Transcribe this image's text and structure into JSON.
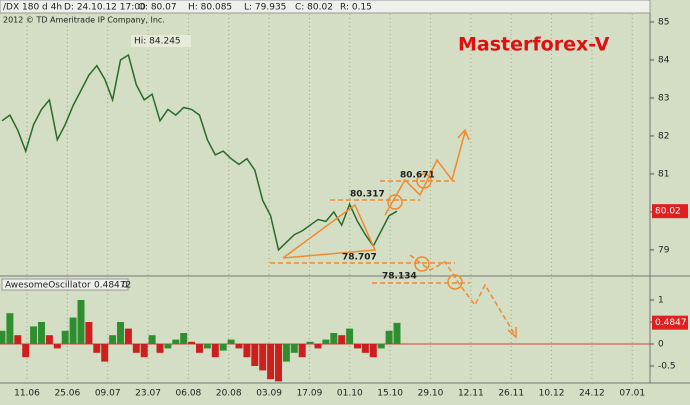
{
  "header": {
    "symbol": "/DX 180 d 4h",
    "date": "D: 24.10.12 17:00",
    "open": "O: 80.07",
    "high": "H: 80.085",
    "low": "L: 79.935",
    "close": "C: 80.02",
    "range": "R: 0.15"
  },
  "x_axis_labels": [
    "11.06",
    "25.06",
    "09.07",
    "23.07",
    "06.08",
    "20.08",
    "03.09",
    "17.09",
    "01.10",
    "15.10",
    "29.10",
    "12.11",
    "26.11",
    "10.12",
    "24.12",
    "07.01"
  ],
  "chart_data": [
    {
      "type": "line",
      "title": "Masterforex-V",
      "watermark": "2012 © TD Ameritrade IP Company, Inc.",
      "color": "#2a6a2a",
      "values": [
        82.4,
        82.55,
        82.15,
        81.6,
        82.3,
        82.7,
        82.95,
        81.9,
        82.3,
        82.8,
        83.2,
        83.6,
        83.85,
        83.5,
        82.95,
        84.0,
        84.13,
        83.35,
        82.95,
        83.1,
        82.4,
        82.7,
        82.55,
        82.75,
        82.7,
        82.55,
        81.9,
        81.5,
        81.6,
        81.4,
        81.25,
        81.4,
        81.1,
        80.3,
        79.9,
        79.0,
        79.2,
        79.4,
        79.5,
        79.65,
        79.8,
        79.75,
        80.0,
        79.65,
        80.2,
        79.75,
        79.4,
        79.1,
        79.5,
        79.9,
        80.02
      ],
      "ylim": [
        78.34,
        85.21
      ],
      "yticks": [
        79,
        80,
        81,
        82,
        83,
        84,
        85
      ],
      "high_label": "Hi: 84.245",
      "last_value": 80.02,
      "annotations": [
        "80.671",
        "80.317",
        "78.707",
        "78.134"
      ]
    },
    {
      "type": "bar",
      "title": "AwesomeOscillator",
      "current": "0.48472",
      "param": "0",
      "colors": {
        "up": "#2f8f2f",
        "down": "#cc1f1f"
      },
      "values": [
        0.3,
        0.7,
        0.2,
        -0.3,
        0.4,
        0.5,
        0.2,
        -0.1,
        0.3,
        0.6,
        1.0,
        0.5,
        -0.2,
        -0.4,
        0.2,
        0.5,
        0.35,
        -0.2,
        -0.3,
        0.2,
        -0.2,
        -0.1,
        0.1,
        0.25,
        0.05,
        -0.2,
        -0.1,
        -0.3,
        -0.15,
        0.1,
        -0.1,
        -0.3,
        -0.5,
        -0.6,
        -0.8,
        -0.85,
        -0.4,
        -0.2,
        -0.3,
        0.05,
        -0.1,
        0.1,
        0.25,
        0.2,
        0.35,
        -0.1,
        -0.2,
        -0.3,
        -0.1,
        0.3,
        0.48
      ],
      "ylim": [
        -0.886,
        1.227
      ],
      "yticks": [
        -0.5,
        0,
        0.5,
        1
      ],
      "last_value": 0.4847
    }
  ]
}
